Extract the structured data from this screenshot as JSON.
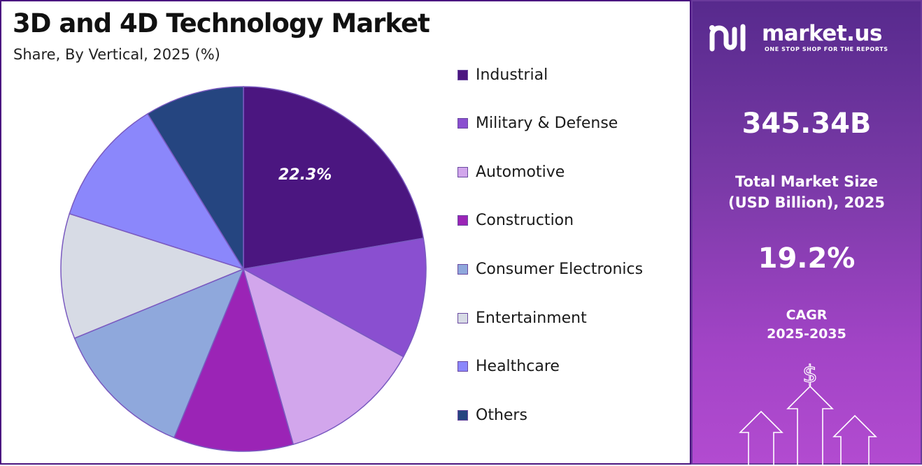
{
  "chart_data": {
    "type": "pie",
    "title": "3D and 4D Technology Market",
    "subtitle": "Share, By Vertical, 2025 (%)",
    "categories": [
      "Industrial",
      "Military & Defense",
      "Automotive",
      "Construction",
      "Consumer Electronics",
      "Entertainment",
      "Healthcare",
      "Others"
    ],
    "values": [
      22.3,
      10.7,
      12.6,
      10.6,
      12.6,
      11.1,
      11.3,
      8.8
    ],
    "colors": [
      "#4b1680",
      "#8a4fd0",
      "#d2a6ec",
      "#9b24b6",
      "#8fa8dc",
      "#d7dbe5",
      "#8b87fb",
      "#254580"
    ],
    "data_labels": [
      {
        "category": "Industrial",
        "text": "22.3%"
      }
    ],
    "legend": "right"
  },
  "side_panel": {
    "brand_name": "market.us",
    "brand_tagline": "ONE STOP SHOP FOR THE REPORTS",
    "market_size_value": "345.34B",
    "market_size_label_line1": "Total Market Size",
    "market_size_label_line2": "(USD Billion), 2025",
    "cagr_value": "19.2%",
    "cagr_label_line1": "CAGR",
    "cagr_label_line2": "2025-2035",
    "currency_symbol": "$",
    "icons": [
      "market-us-logo-icon",
      "growth-arrows-icon"
    ]
  }
}
